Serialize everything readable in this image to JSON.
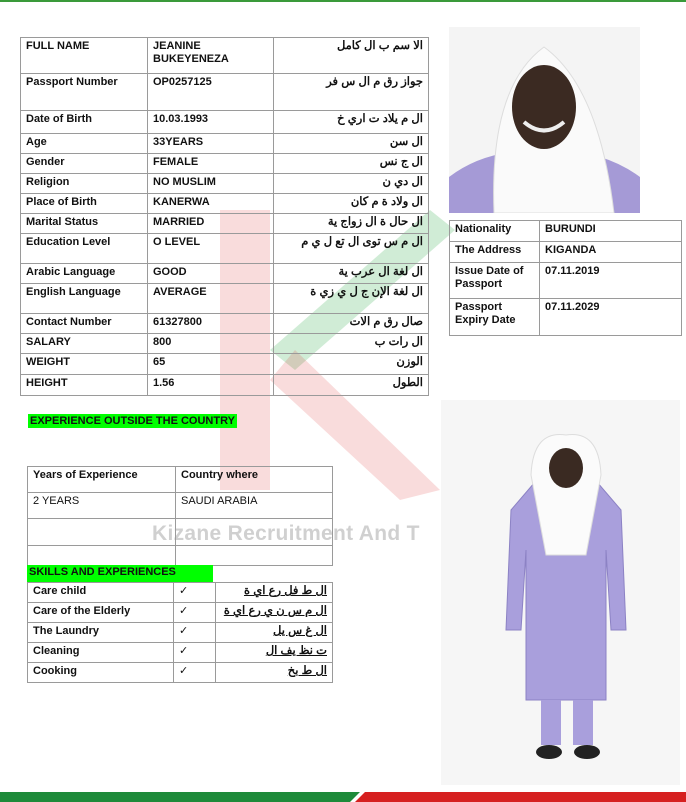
{
  "personal": {
    "rows": [
      [
        "FULL NAME",
        "JEANINE BUKEYENEZA",
        "الا سم ب ال كامل"
      ],
      [
        "Passport Number",
        "OP0257125",
        "جواز رق م ال س فر"
      ],
      [
        "Date of Birth",
        "10.03.1993",
        "ال م يلاد ت اري خ"
      ],
      [
        "Age",
        "33YEARS",
        "ال سن"
      ],
      [
        "Gender",
        "FEMALE",
        "ال ج نس"
      ],
      [
        "Religion",
        "NO MUSLIM",
        "ال دي ن"
      ],
      [
        "Place of Birth",
        "KANERWA",
        "ال ولاد ة م كان"
      ],
      [
        "Marital Status",
        "MARRIED",
        "ال حال ة ال زواج ية"
      ],
      [
        "Education Level",
        "O LEVEL",
        "ال م س توى ال تع ل ي م"
      ],
      [
        "Arabic Language",
        "GOOD",
        "ال لغة ال عرب ية"
      ],
      [
        "English Language",
        "AVERAGE",
        "ال لغة الإن ج ل ي زي ة"
      ],
      [
        "Contact Number",
        "61327800",
        "صال رق م الات"
      ],
      [
        "SALARY",
        "800",
        "ال رات ب"
      ],
      [
        "WEIGHT",
        "65",
        "الوزن"
      ],
      [
        "HEIGHT",
        "1.56",
        "الطول"
      ]
    ]
  },
  "details": {
    "rows": [
      [
        "Nationality",
        "BURUNDI"
      ],
      [
        "The Address",
        "KIGANDA"
      ],
      [
        "Issue Date of Passport",
        "07.11.2019"
      ],
      [
        "Passport Expiry Date",
        "07.11.2029"
      ]
    ]
  },
  "experience": {
    "title": "EXPERIENCE OUTSIDE THE COUNTRY",
    "header": [
      "Years of Experience",
      "Country where"
    ],
    "rows": [
      [
        "2 YEARS",
        "SAUDI ARABIA"
      ]
    ]
  },
  "skills": {
    "title": "SKILLS AND EXPERIENCES",
    "rows": [
      [
        "Care child",
        "✓",
        "ال ط فل رع اي ة"
      ],
      [
        "Care of the Elderly",
        "✓",
        "ال م س ن ي رع اي ة"
      ],
      [
        "The Laundry",
        "✓",
        "ال غ س يل"
      ],
      [
        "Cleaning",
        "✓",
        "ت نظ يف ال"
      ],
      [
        "Cooking",
        "✓",
        "ال ط بخ"
      ]
    ]
  },
  "watermark": "Kizane Recruitment And T"
}
